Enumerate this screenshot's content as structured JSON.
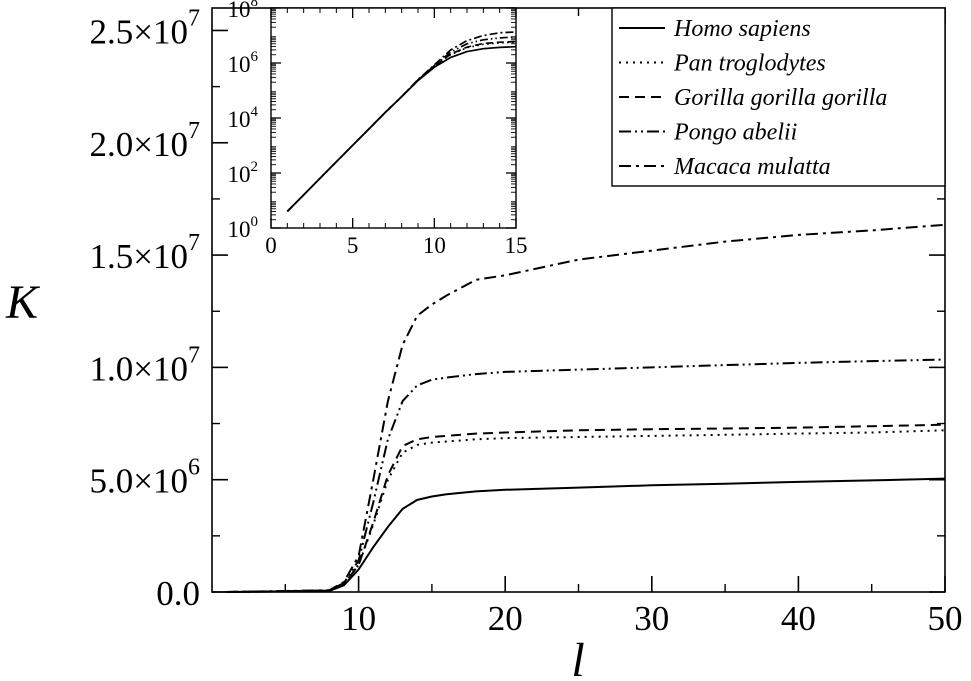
{
  "chart_data": [
    {
      "type": "line",
      "xlabel": "l",
      "ylabel": "K",
      "xlim": [
        0,
        50
      ],
      "ylim": [
        0,
        26000000
      ],
      "x_ticks": [
        {
          "value": 10,
          "label": "10"
        },
        {
          "value": 20,
          "label": "20"
        },
        {
          "value": 30,
          "label": "30"
        },
        {
          "value": 40,
          "label": "40"
        },
        {
          "value": 50,
          "label": "50"
        }
      ],
      "y_ticks": [
        {
          "value": 0,
          "mantissa": "0.0",
          "exp": ""
        },
        {
          "value": 5000000,
          "mantissa": "5.0×10",
          "exp": "6"
        },
        {
          "value": 10000000,
          "mantissa": "1.0×10",
          "exp": "7"
        },
        {
          "value": 15000000,
          "mantissa": "1.5×10",
          "exp": "7"
        },
        {
          "value": 20000000,
          "mantissa": "2.0×10",
          "exp": "7"
        },
        {
          "value": 25000000,
          "mantissa": "2.5×10",
          "exp": "7"
        }
      ],
      "grid": false,
      "legend_position": "top-right",
      "series": [
        {
          "name": "Homo sapiens",
          "dash": "solid",
          "x": [
            1,
            8,
            9,
            10,
            11,
            12,
            13,
            14,
            15,
            16,
            18,
            20,
            25,
            30,
            35,
            40,
            45,
            50
          ],
          "y": [
            0,
            50000,
            300000,
            1000000,
            2000000,
            2900000,
            3700000,
            4100000,
            4250000,
            4350000,
            4480000,
            4550000,
            4650000,
            4750000,
            4820000,
            4900000,
            4970000,
            5050000
          ]
        },
        {
          "name": "Pan troglodytes",
          "dash": "dotted",
          "x": [
            1,
            8,
            9,
            10,
            11,
            12,
            13,
            14,
            15,
            16,
            18,
            20,
            25,
            30,
            35,
            40,
            45,
            50
          ],
          "y": [
            0,
            60000,
            350000,
            1200000,
            3000000,
            5000000,
            6200000,
            6550000,
            6650000,
            6700000,
            6800000,
            6850000,
            6900000,
            6950000,
            7000000,
            7050000,
            7100000,
            7200000
          ]
        },
        {
          "name": "Gorilla gorilla gorilla",
          "dash": "dashed",
          "x": [
            1,
            8,
            9,
            10,
            11,
            12,
            13,
            14,
            15,
            16,
            18,
            20,
            25,
            30,
            35,
            40,
            45,
            50
          ],
          "y": [
            0,
            60000,
            350000,
            1200000,
            3100000,
            5200000,
            6500000,
            6800000,
            6900000,
            6950000,
            7050000,
            7100000,
            7200000,
            7250000,
            7280000,
            7320000,
            7380000,
            7450000
          ]
        },
        {
          "name": "Pongo abelii",
          "dash": "dash-dot-dot",
          "x": [
            1,
            8,
            9,
            10,
            11,
            12,
            13,
            14,
            15,
            16,
            18,
            20,
            25,
            30,
            35,
            40,
            45,
            50
          ],
          "y": [
            0,
            70000,
            400000,
            1400000,
            4000000,
            6800000,
            8500000,
            9200000,
            9450000,
            9550000,
            9700000,
            9800000,
            9900000,
            10000000,
            10100000,
            10200000,
            10280000,
            10350000
          ]
        },
        {
          "name": "Macaca mulatta",
          "dash": "dash-dot",
          "x": [
            1,
            8,
            9,
            10,
            11,
            12,
            13,
            14,
            15,
            16,
            18,
            20,
            25,
            30,
            35,
            40,
            45,
            50
          ],
          "y": [
            0,
            80000,
            450000,
            1600000,
            5000000,
            8500000,
            11000000,
            12300000,
            12800000,
            13200000,
            13900000,
            14100000,
            14800000,
            15200000,
            15600000,
            15900000,
            16100000,
            16350000
          ]
        }
      ]
    },
    {
      "type": "line",
      "inset": true,
      "xlim": [
        0,
        15
      ],
      "y_scale": "log",
      "ylim": [
        1,
        100000000
      ],
      "x_ticks": [
        {
          "value": 0,
          "label": "0"
        },
        {
          "value": 5,
          "label": "5"
        },
        {
          "value": 10,
          "label": "10"
        },
        {
          "value": 15,
          "label": "15"
        }
      ],
      "y_ticks": [
        {
          "value": 1,
          "base": "10",
          "exp": "0"
        },
        {
          "value": 100,
          "base": "10",
          "exp": "2"
        },
        {
          "value": 10000,
          "base": "10",
          "exp": "4"
        },
        {
          "value": 1000000,
          "base": "10",
          "exp": "6"
        },
        {
          "value": 100000000,
          "base": "10",
          "exp": "8"
        }
      ],
      "series": [
        {
          "name": "Homo sapiens",
          "dash": "solid",
          "x": [
            1,
            2,
            3,
            4,
            5,
            6,
            7,
            8,
            9,
            10,
            11,
            12,
            13,
            14,
            15
          ],
          "y": [
            4,
            16,
            64,
            256,
            1020,
            4000,
            16000,
            60000,
            230000,
            700000,
            1600000,
            2600000,
            3300000,
            3700000,
            3900000
          ]
        },
        {
          "name": "Pan troglodytes",
          "dash": "dotted",
          "x": [
            1,
            2,
            3,
            4,
            5,
            6,
            7,
            8,
            9,
            10,
            11,
            12,
            13,
            14,
            15
          ],
          "y": [
            4,
            16,
            64,
            256,
            1020,
            4000,
            16000,
            60000,
            240000,
            750000,
            2000000,
            3600000,
            4800000,
            5400000,
            5700000
          ]
        },
        {
          "name": "Gorilla gorilla gorilla",
          "dash": "dashed",
          "x": [
            1,
            2,
            3,
            4,
            5,
            6,
            7,
            8,
            9,
            10,
            11,
            12,
            13,
            14,
            15
          ],
          "y": [
            4,
            16,
            64,
            256,
            1020,
            4000,
            16000,
            60000,
            240000,
            760000,
            2100000,
            3800000,
            5100000,
            5700000,
            6000000
          ]
        },
        {
          "name": "Pongo abelii",
          "dash": "dash-dot-dot",
          "x": [
            1,
            2,
            3,
            4,
            5,
            6,
            7,
            8,
            9,
            10,
            11,
            12,
            13,
            14,
            15
          ],
          "y": [
            4,
            16,
            64,
            256,
            1020,
            4000,
            16000,
            60000,
            245000,
            800000,
            2500000,
            5000000,
            7000000,
            8200000,
            8800000
          ]
        },
        {
          "name": "Macaca mulatta",
          "dash": "dash-dot",
          "x": [
            1,
            2,
            3,
            4,
            5,
            6,
            7,
            8,
            9,
            10,
            11,
            12,
            13,
            14,
            15
          ],
          "y": [
            4,
            16,
            64,
            256,
            1020,
            4000,
            16000,
            60000,
            250000,
            850000,
            3000000,
            6500000,
            10000000,
            12500000,
            13500000
          ]
        }
      ]
    }
  ]
}
